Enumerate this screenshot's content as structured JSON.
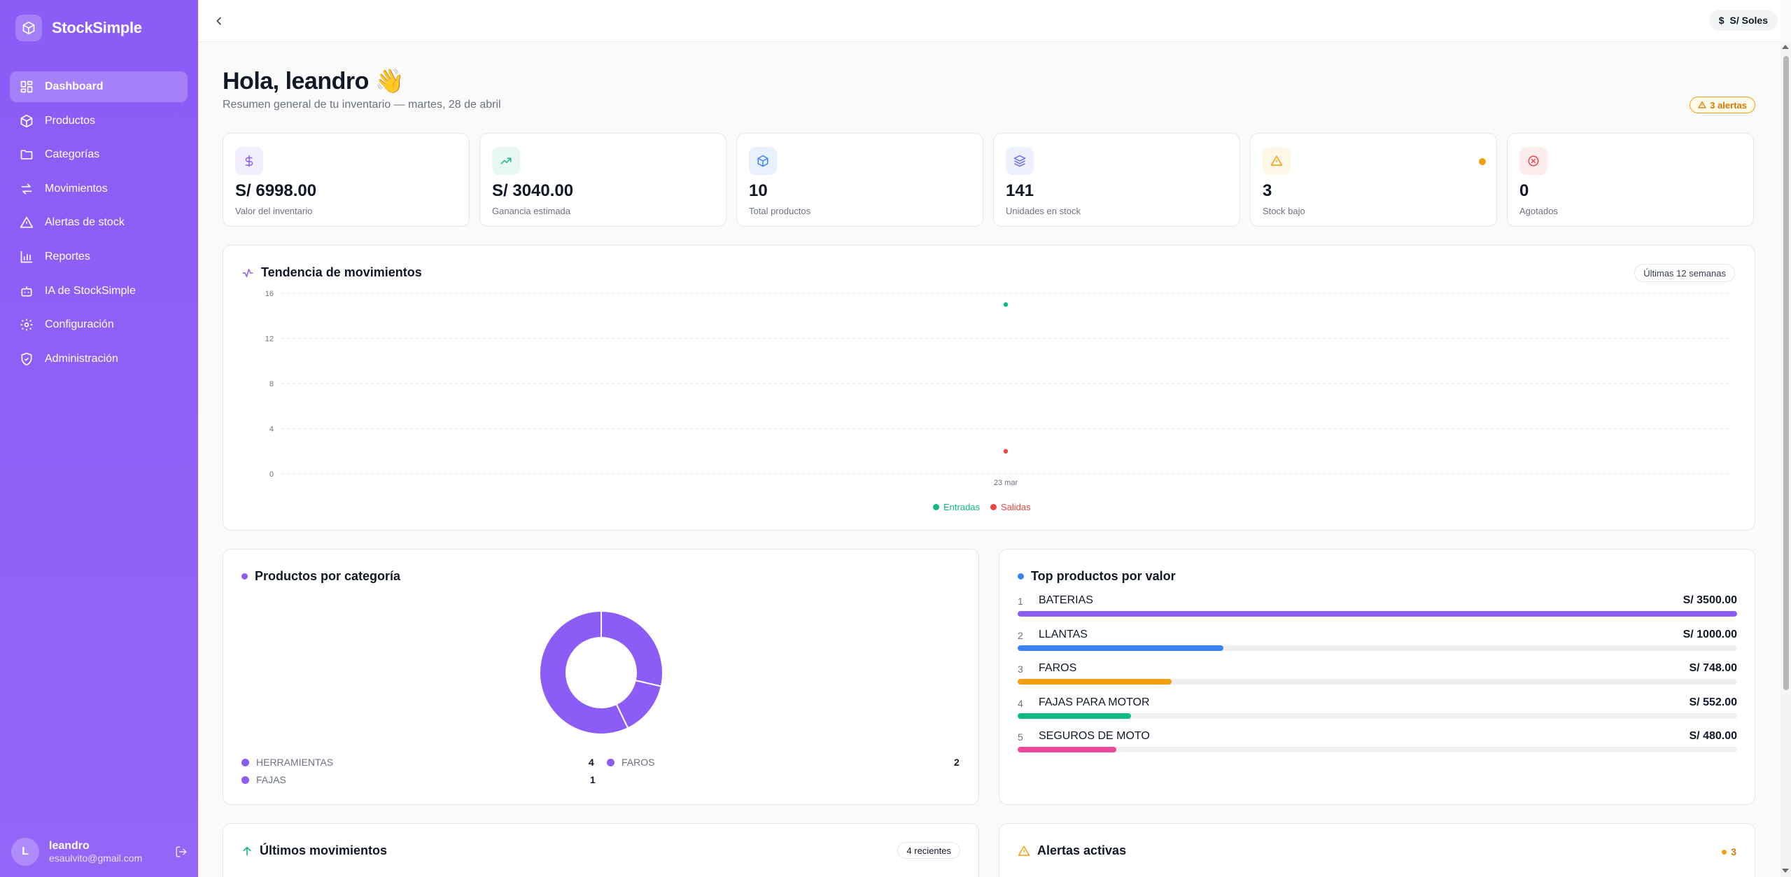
{
  "brand": {
    "name": "StockSimple",
    "logo_icon": "box-icon"
  },
  "sidebar": {
    "items": [
      {
        "label": "Dashboard",
        "icon": "grid-icon",
        "active": true
      },
      {
        "label": "Productos",
        "icon": "box-icon"
      },
      {
        "label": "Categorías",
        "icon": "folder-icon"
      },
      {
        "label": "Movimientos",
        "icon": "swap-icon"
      },
      {
        "label": "Alertas de stock",
        "icon": "alert-triangle-icon"
      },
      {
        "label": "Reportes",
        "icon": "bar-chart-icon"
      },
      {
        "label": "IA de StockSimple",
        "icon": "robot-icon"
      },
      {
        "label": "Configuración",
        "icon": "gear-icon"
      },
      {
        "label": "Administración",
        "icon": "shield-icon"
      }
    ],
    "user": {
      "initial": "L",
      "name": "leandro",
      "email": "esaulvito@gmail.com"
    }
  },
  "topbar": {
    "currency": "S/ Soles"
  },
  "header": {
    "greeting": "Hola, leandro 👋",
    "subtitle": "Resumen general de tu inventario — martes, 28 de abril",
    "alerts_badge": "3 alertas"
  },
  "stats": [
    {
      "value": "S/ 6998.00",
      "label": "Valor del inventario",
      "icon": "dollar-icon",
      "color": "#8b5cf6",
      "bg": "#f3eefe"
    },
    {
      "value": "S/ 3040.00",
      "label": "Ganancia estimada",
      "icon": "trending-up-icon",
      "color": "#10b981",
      "bg": "#e8f8f1"
    },
    {
      "value": "10",
      "label": "Total productos",
      "icon": "box-icon",
      "color": "#3b82f6",
      "bg": "#eaf1fe"
    },
    {
      "value": "141",
      "label": "Unidades en stock",
      "icon": "layers-icon",
      "color": "#6366f1",
      "bg": "#eef0fe"
    },
    {
      "value": "3",
      "label": "Stock bajo",
      "icon": "alert-triangle-icon",
      "color": "#f59e0b",
      "bg": "#fef6e7"
    },
    {
      "value": "0",
      "label": "Agotados",
      "icon": "x-circle-icon",
      "color": "#ef4444",
      "bg": "#fdecec"
    }
  ],
  "trend": {
    "title": "Tendencia de movimientos",
    "range_label": "Últimas 12 semanas",
    "chart_data": {
      "type": "scatter",
      "x": [
        "23 mar"
      ],
      "series": [
        {
          "name": "Entradas",
          "color": "#10b981",
          "values": [
            15
          ]
        },
        {
          "name": "Salidas",
          "color": "#ef4444",
          "values": [
            2
          ]
        }
      ],
      "yticks": [
        "0",
        "4",
        "8",
        "12",
        "16"
      ],
      "ylim": [
        0,
        16
      ],
      "grid": true,
      "legend": "bottom-center"
    }
  },
  "categories": {
    "title": "Productos por categoría",
    "chart_data": {
      "type": "pie",
      "categories": [
        "HERRAMIENTAS",
        "FAROS",
        "FAJAS"
      ],
      "values": [
        4,
        2,
        1
      ],
      "color": "#8b5cf6"
    },
    "counts": [
      "4",
      "2",
      "1"
    ]
  },
  "top_products": {
    "title": "Top productos por valor",
    "items": [
      {
        "rank": "1",
        "name": "BATERIAS",
        "value": "S/ 3500.00",
        "amount": 3500,
        "color": "#8b5cf6"
      },
      {
        "rank": "2",
        "name": "LLANTAS",
        "value": "S/ 1000.00",
        "amount": 1000,
        "color": "#3b82f6"
      },
      {
        "rank": "3",
        "name": "FAROS",
        "value": "S/ 748.00",
        "amount": 748,
        "color": "#f59e0b"
      },
      {
        "rank": "4",
        "name": "FAJAS PARA MOTOR",
        "value": "S/ 552.00",
        "amount": 552,
        "color": "#10b981"
      },
      {
        "rank": "5",
        "name": "SEGUROS DE MOTO",
        "value": "S/ 480.00",
        "amount": 480,
        "color": "#ec4899"
      }
    ]
  },
  "recent": {
    "title": "Últimos movimientos",
    "count_label": "4 recientes"
  },
  "active_alerts": {
    "title": "Alertas activas",
    "count": "3"
  }
}
